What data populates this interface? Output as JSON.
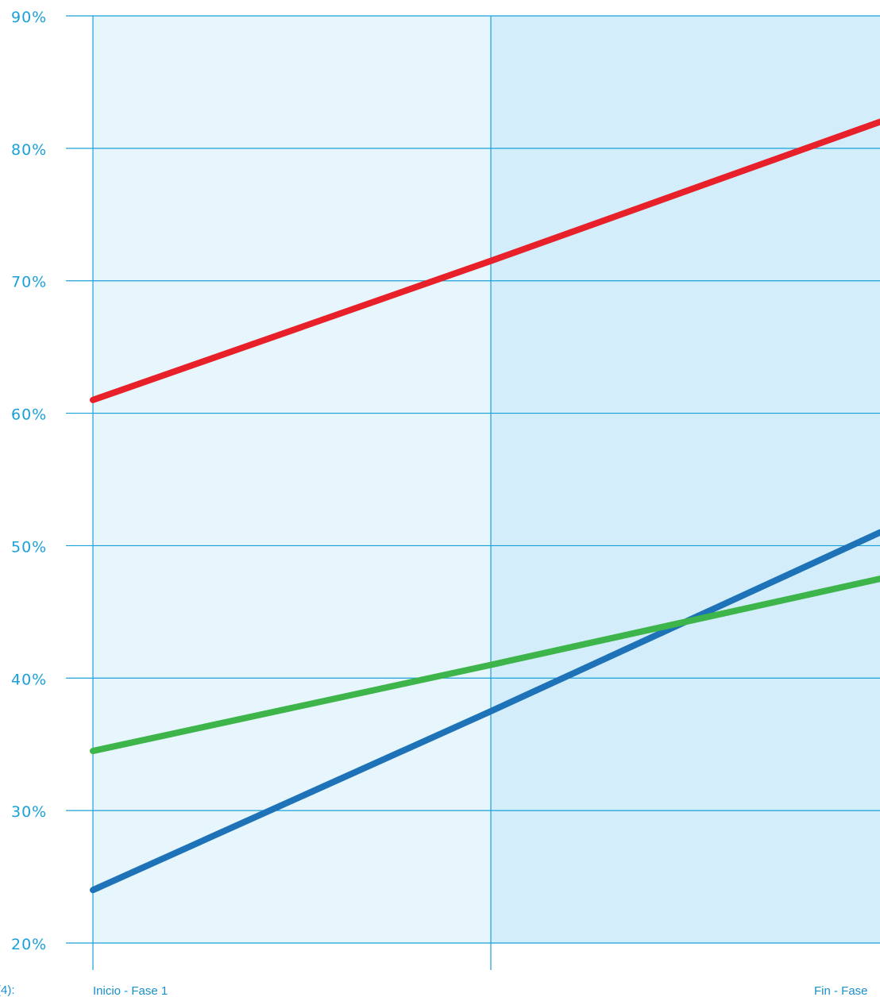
{
  "chart_data": {
    "type": "line",
    "x": [
      "Inicio - Fase 1",
      "",
      "Fin - Fase"
    ],
    "x_tick_labels": [
      "Inicio - Fase 1",
      "Fin - Fase"
    ],
    "ylim": [
      20,
      90
    ],
    "yticks": [
      20,
      30,
      40,
      50,
      60,
      70,
      80,
      90
    ],
    "ytick_labels": [
      "20%",
      "30%",
      "40%",
      "50%",
      "60%",
      "70%",
      "80%",
      "90%"
    ],
    "grid": true,
    "series": [
      {
        "color": "#e8202a",
        "values": [
          61,
          71.5,
          82
        ]
      },
      {
        "color": "#1e73b8",
        "values": [
          24,
          37.5,
          51
        ]
      },
      {
        "color": "#3db54a",
        "values": [
          34.5,
          41,
          47.5
        ]
      }
    ],
    "edge_text": "(4):"
  },
  "colors": {
    "panel_left": "#e6f6fc",
    "panel_right": "#d3eefa",
    "grid": "#1aa0d8",
    "tick_text": "#1aa0d8"
  }
}
